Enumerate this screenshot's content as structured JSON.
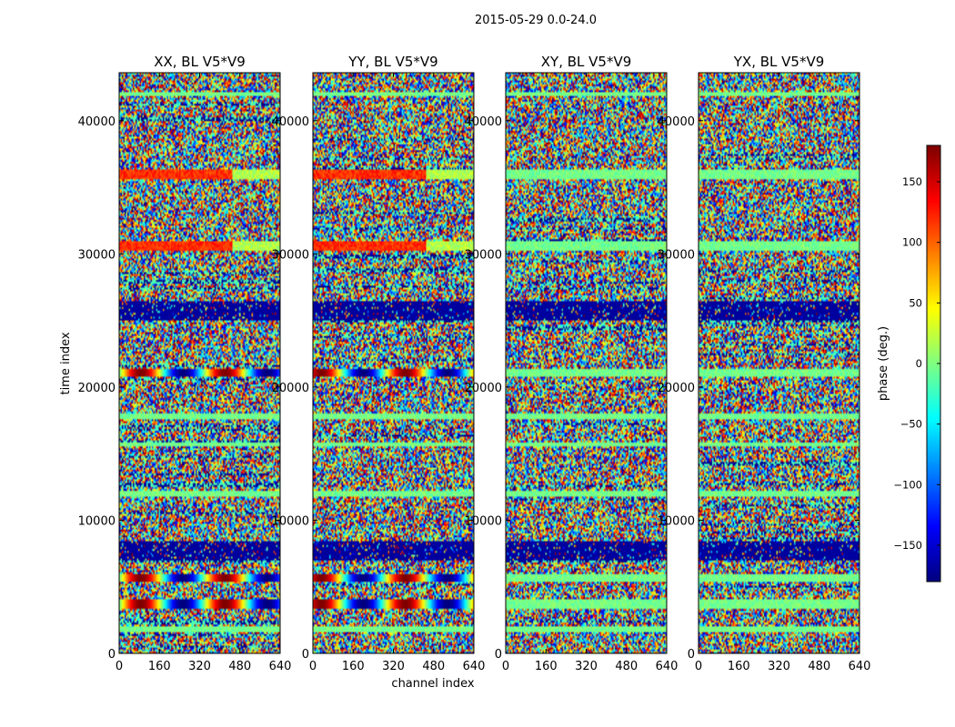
{
  "figure_title": "2015-05-29 0.0-24.0",
  "chart_data": {
    "type": "heatmap",
    "colormap": "jet",
    "panels": [
      {
        "title": "XX, BL V5*V9"
      },
      {
        "title": "YY, BL V5*V9"
      },
      {
        "title": "XY, BL V5*V9"
      },
      {
        "title": "YX, BL V5*V9"
      }
    ],
    "xlabel": "channel index",
    "ylabel": "time index",
    "xlim": [
      0,
      640
    ],
    "ylim": [
      0,
      43600
    ],
    "xticks": [
      0,
      160,
      320,
      480,
      640
    ],
    "yticks": [
      0,
      10000,
      20000,
      30000,
      40000
    ],
    "colorbar": {
      "label": "phase (deg.)",
      "range": [
        -180,
        180
      ],
      "ticks": [
        -150,
        -100,
        -50,
        0,
        50,
        100,
        150
      ]
    },
    "description_bands": [
      {
        "time_center": 1800,
        "kind": "smooth"
      },
      {
        "time_center": 3700,
        "kind": "fringe"
      },
      {
        "time_center": 5700,
        "kind": "fringe"
      },
      {
        "time_center": 7700,
        "kind": "flagged"
      },
      {
        "time_center": 12000,
        "kind": "smooth"
      },
      {
        "time_center": 15700,
        "kind": "smooth"
      },
      {
        "time_center": 17800,
        "kind": "smooth"
      },
      {
        "time_center": 21100,
        "kind": "fringe"
      },
      {
        "time_center": 25700,
        "kind": "flagged"
      },
      {
        "time_center": 30600,
        "kind": "stripe"
      },
      {
        "time_center": 36000,
        "kind": "stripe"
      },
      {
        "time_center": 42000,
        "kind": "smooth"
      }
    ]
  }
}
